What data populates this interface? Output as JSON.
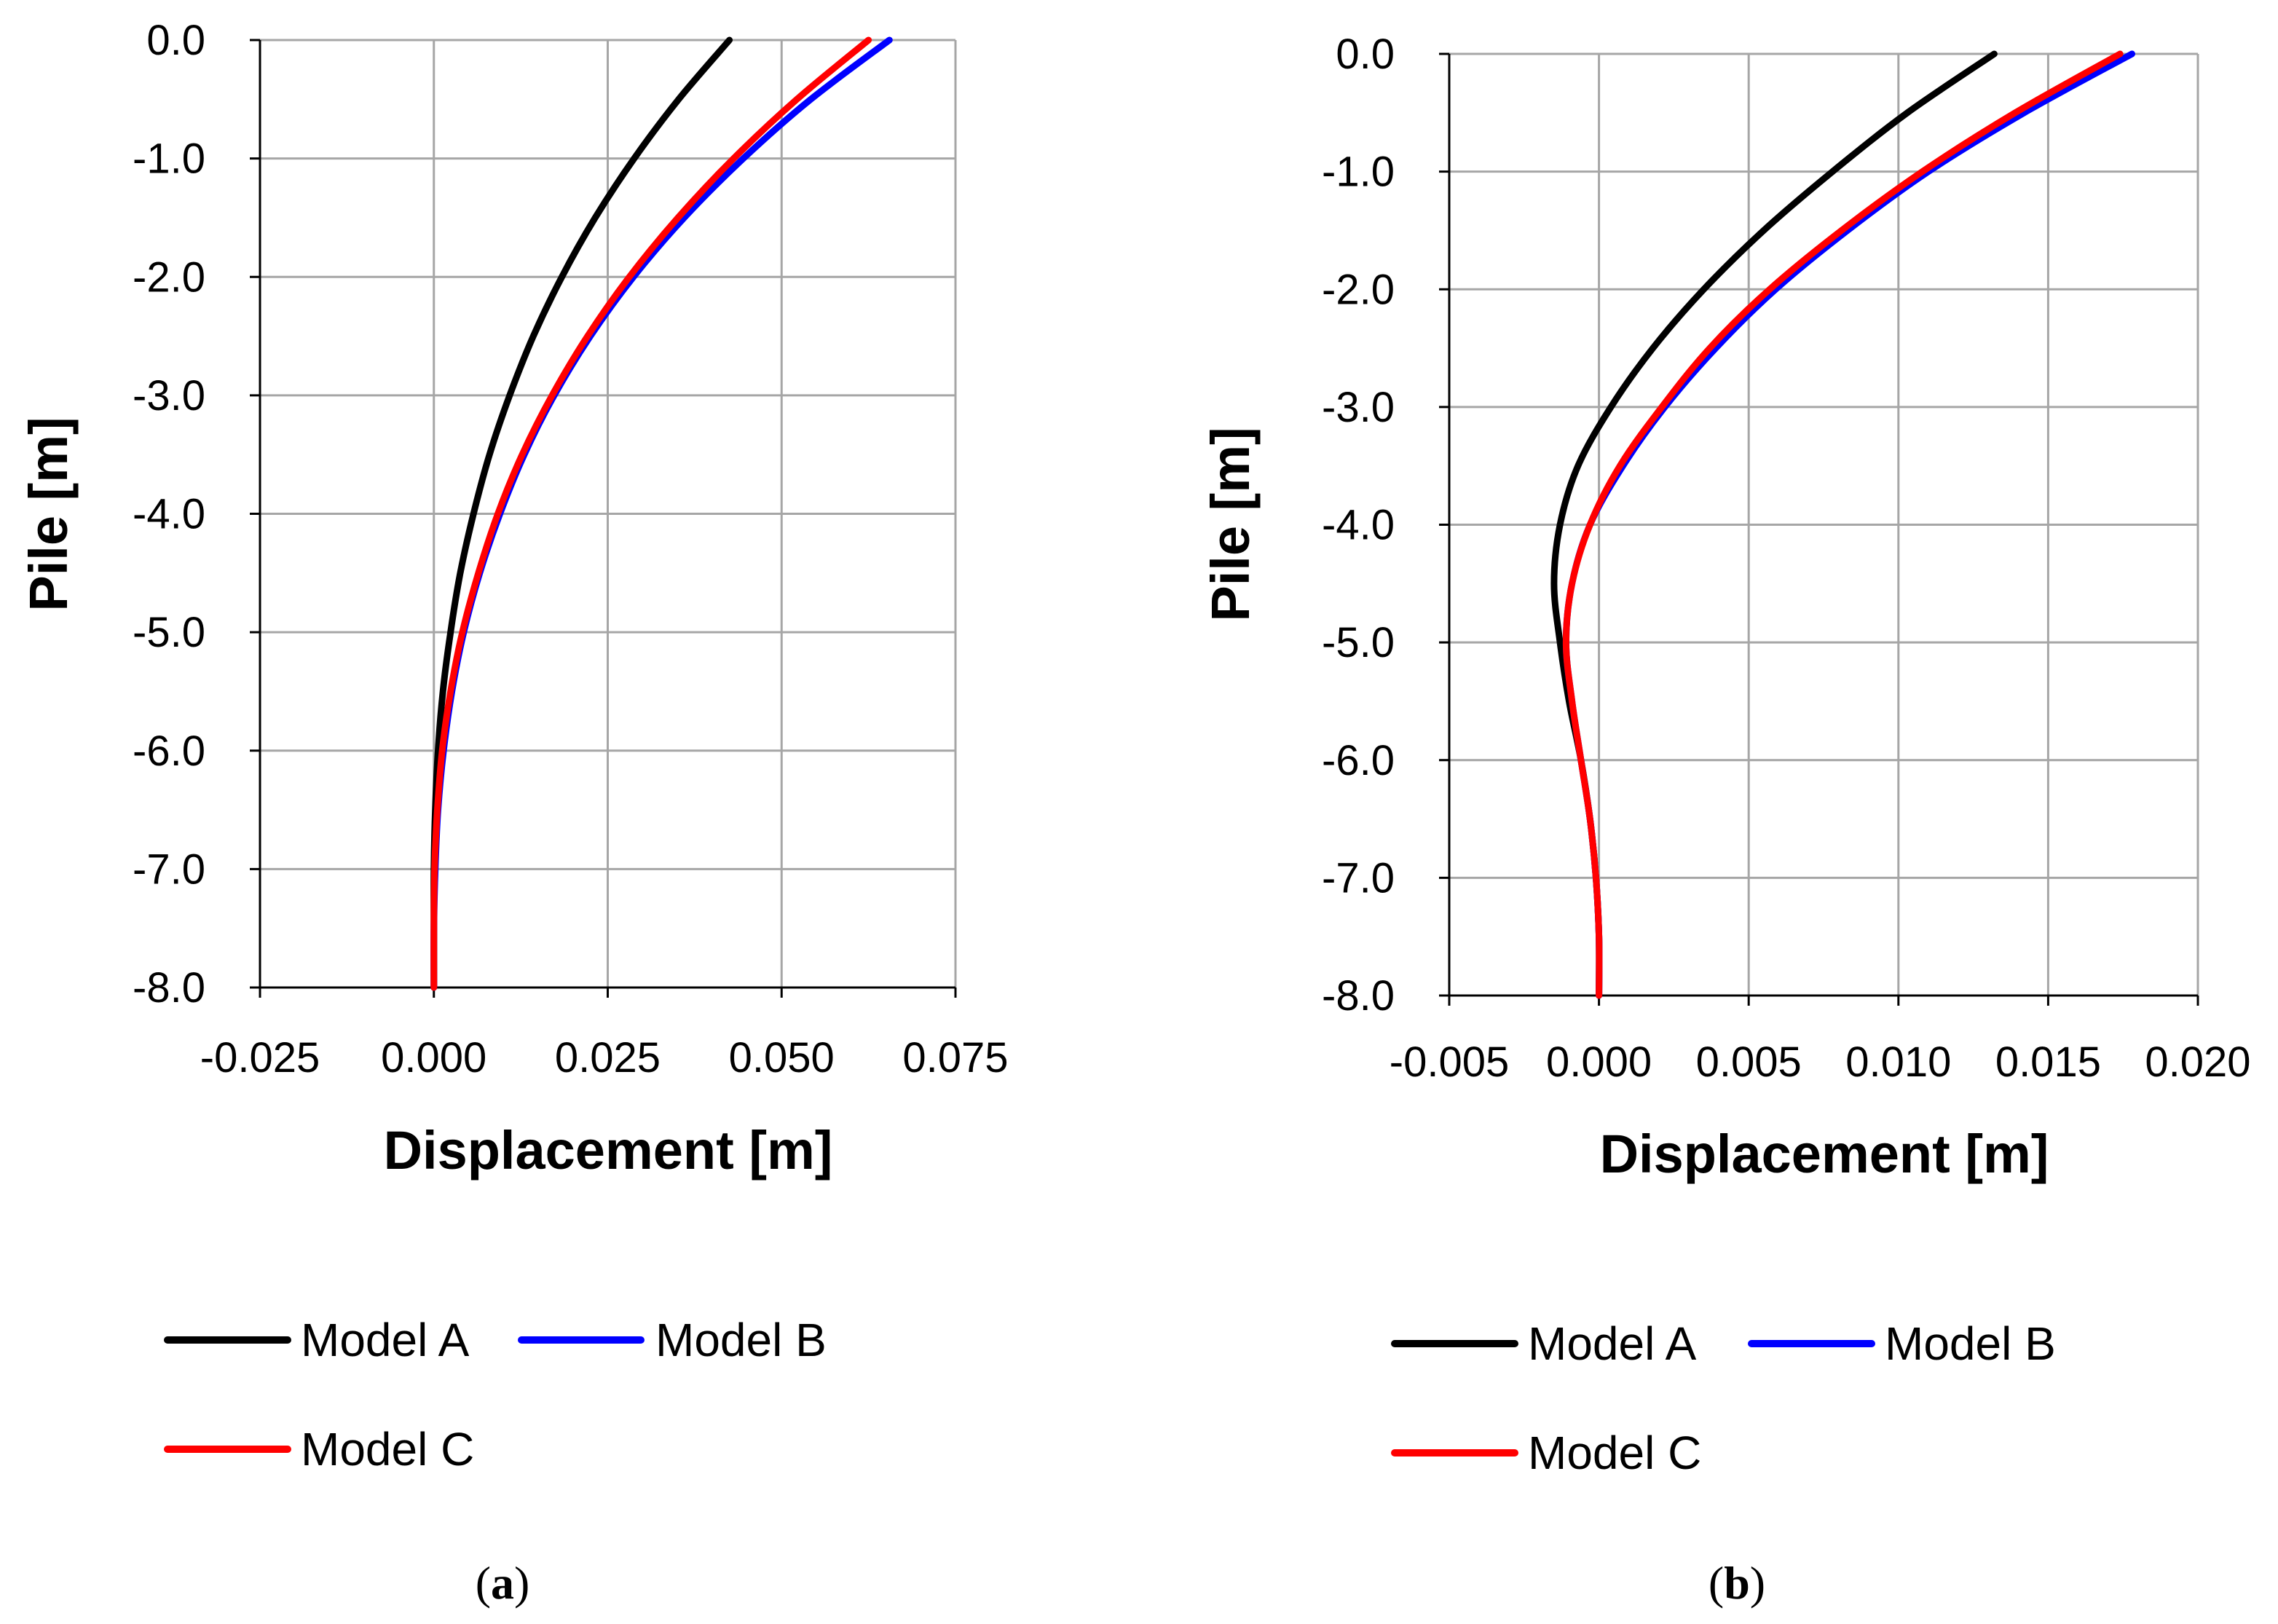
{
  "chart_data": [
    {
      "type": "line",
      "panel_label": "a",
      "xlabel": "Displacement [m]",
      "ylabel": "Pile [m]",
      "xlim": [
        -0.025,
        0.075
      ],
      "ylim": [
        -8.0,
        0.0
      ],
      "x_ticks": [
        "-0.025",
        "0.000",
        "0.025",
        "0.050",
        "0.075"
      ],
      "y_ticks": [
        "0.0",
        "-1.0",
        "-2.0",
        "-3.0",
        "-4.0",
        "-5.0",
        "-6.0",
        "-7.0",
        "-8.0"
      ],
      "grid": true,
      "legend_position": "bottom",
      "series": [
        {
          "name": "Model A",
          "color": "#000000",
          "points": [
            [
              0.0425,
              0.0
            ],
            [
              0.0352,
              -0.5
            ],
            [
              0.0288,
              -1.0
            ],
            [
              0.0232,
              -1.5
            ],
            [
              0.0184,
              -2.0
            ],
            [
              0.0143,
              -2.5
            ],
            [
              0.0109,
              -3.0
            ],
            [
              0.008,
              -3.5
            ],
            [
              0.0057,
              -4.0
            ],
            [
              0.0038,
              -4.5
            ],
            [
              0.0024,
              -5.0
            ],
            [
              0.0013,
              -5.5
            ],
            [
              0.0006,
              -6.0
            ],
            [
              0.0002,
              -6.5
            ],
            [
              0.0,
              -7.0
            ],
            [
              0.0,
              -7.5
            ],
            [
              0.0,
              -8.0
            ]
          ]
        },
        {
          "name": "Model B",
          "color": "#0000ff",
          "points": [
            [
              0.0655,
              0.0
            ],
            [
              0.0542,
              -0.5
            ],
            [
              0.0445,
              -1.0
            ],
            [
              0.036,
              -1.5
            ],
            [
              0.0287,
              -2.0
            ],
            [
              0.0225,
              -2.5
            ],
            [
              0.0173,
              -3.0
            ],
            [
              0.013,
              -3.5
            ],
            [
              0.0095,
              -4.0
            ],
            [
              0.0066,
              -4.5
            ],
            [
              0.0043,
              -5.0
            ],
            [
              0.0026,
              -5.5
            ],
            [
              0.0014,
              -6.0
            ],
            [
              0.0006,
              -6.5
            ],
            [
              0.0002,
              -7.0
            ],
            [
              0.0,
              -7.5
            ],
            [
              0.0,
              -8.0
            ]
          ]
        },
        {
          "name": "Model C",
          "color": "#ff0000",
          "points": [
            [
              0.0625,
              0.0
            ],
            [
              0.0522,
              -0.5
            ],
            [
              0.0431,
              -1.0
            ],
            [
              0.0351,
              -1.5
            ],
            [
              0.0281,
              -2.0
            ],
            [
              0.0221,
              -2.5
            ],
            [
              0.017,
              -3.0
            ],
            [
              0.0127,
              -3.5
            ],
            [
              0.0092,
              -4.0
            ],
            [
              0.0064,
              -4.5
            ],
            [
              0.0041,
              -5.0
            ],
            [
              0.0024,
              -5.5
            ],
            [
              0.0012,
              -6.0
            ],
            [
              0.0005,
              -6.5
            ],
            [
              0.0001,
              -7.0
            ],
            [
              0.0,
              -7.5
            ],
            [
              0.0,
              -8.0
            ]
          ]
        }
      ]
    },
    {
      "type": "line",
      "panel_label": "b",
      "xlabel": "Displacement [m]",
      "ylabel": "Pile [m]",
      "xlim": [
        -0.005,
        0.02
      ],
      "ylim": [
        -8.0,
        0.0
      ],
      "x_ticks": [
        "-0.005",
        "0.000",
        "0.005",
        "0.010",
        "0.015",
        "0.020"
      ],
      "y_ticks": [
        "0.0",
        "-1.0",
        "-2.0",
        "-3.0",
        "-4.0",
        "-5.0",
        "-6.0",
        "-7.0",
        "-8.0"
      ],
      "grid": true,
      "legend_position": "bottom",
      "series": [
        {
          "name": "Model A",
          "color": "#000000",
          "points": [
            [
              0.0132,
              0.0
            ],
            [
              0.0103,
              -0.5
            ],
            [
              0.0078,
              -1.0
            ],
            [
              0.0055,
              -1.5
            ],
            [
              0.0035,
              -2.0
            ],
            [
              0.0018,
              -2.5
            ],
            [
              0.0004,
              -3.0
            ],
            [
              -0.0007,
              -3.5
            ],
            [
              -0.0013,
              -4.0
            ],
            [
              -0.0015,
              -4.5
            ],
            [
              -0.0013,
              -5.0
            ],
            [
              -0.001,
              -5.5
            ],
            [
              -0.0006,
              -6.0
            ],
            [
              -0.0003,
              -6.5
            ],
            [
              -0.0001,
              -7.0
            ],
            [
              0.0,
              -7.5
            ],
            [
              0.0,
              -8.0
            ]
          ]
        },
        {
          "name": "Model B",
          "color": "#0000ff",
          "points": [
            [
              0.0178,
              0.0
            ],
            [
              0.0142,
              -0.5
            ],
            [
              0.011,
              -1.0
            ],
            [
              0.0083,
              -1.5
            ],
            [
              0.0059,
              -2.0
            ],
            [
              0.0039,
              -2.5
            ],
            [
              0.0022,
              -3.0
            ],
            [
              0.0008,
              -3.5
            ],
            [
              -0.0003,
              -4.0
            ],
            [
              -0.0009,
              -4.5
            ],
            [
              -0.0011,
              -5.0
            ],
            [
              -0.0009,
              -5.5
            ],
            [
              -0.0006,
              -6.0
            ],
            [
              -0.0003,
              -6.5
            ],
            [
              -0.0001,
              -7.0
            ],
            [
              0.0,
              -7.5
            ],
            [
              0.0,
              -8.0
            ]
          ]
        },
        {
          "name": "Model C",
          "color": "#ff0000",
          "points": [
            [
              0.0174,
              0.0
            ],
            [
              0.0139,
              -0.5
            ],
            [
              0.0108,
              -1.0
            ],
            [
              0.0081,
              -1.5
            ],
            [
              0.0057,
              -2.0
            ],
            [
              0.0037,
              -2.5
            ],
            [
              0.0021,
              -3.0
            ],
            [
              0.0007,
              -3.5
            ],
            [
              -0.0003,
              -4.0
            ],
            [
              -0.0009,
              -4.5
            ],
            [
              -0.0011,
              -5.0
            ],
            [
              -0.0009,
              -5.5
            ],
            [
              -0.0006,
              -6.0
            ],
            [
              -0.0003,
              -6.5
            ],
            [
              -0.0001,
              -7.0
            ],
            [
              0.0,
              -7.5
            ],
            [
              0.0,
              -8.0
            ]
          ]
        }
      ]
    }
  ],
  "legend": {
    "items": [
      "Model A",
      "Model B",
      "Model C"
    ]
  },
  "colors": {
    "grid": "#a6a6a6",
    "axis": "#000000",
    "model_a": "#000000",
    "model_b": "#0000ff",
    "model_c": "#ff0000"
  }
}
